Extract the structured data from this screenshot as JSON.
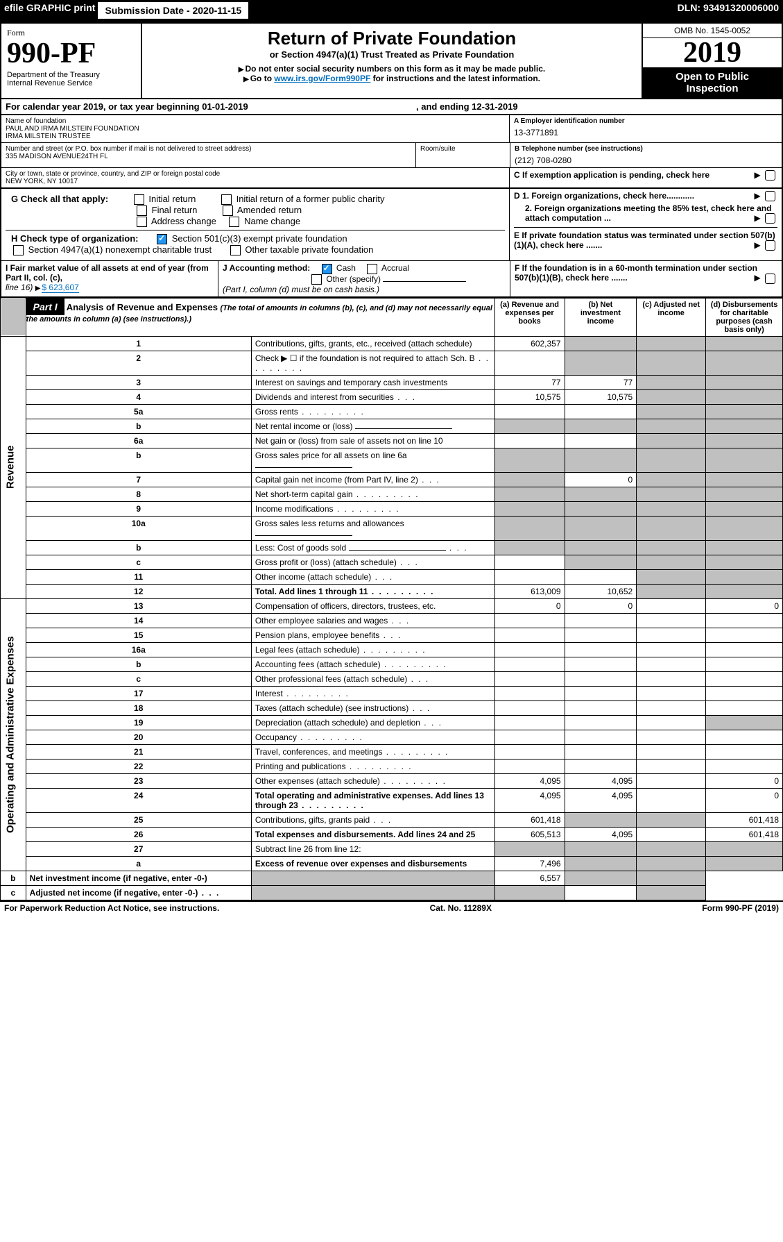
{
  "topbar": {
    "efile": "efile GRAPHIC print",
    "sublabel": "Submission Date - 2020-11-15",
    "dln": "DLN: 93491320006000"
  },
  "head": {
    "form_label": "Form",
    "form_no_big": "990-PF",
    "dept": "Department of the Treasury",
    "irs": "Internal Revenue Service",
    "title": "Return of Private Foundation",
    "subtitle": "or Section 4947(a)(1) Trust Treated as Private Foundation",
    "instr1": "Do not enter social security numbers on this form as it may be made public.",
    "instr2_pre": "Go to ",
    "instr2_link": "www.irs.gov/Form990PF",
    "instr2_post": " for instructions and the latest information.",
    "omb": "OMB No. 1545-0052",
    "year": "2019",
    "open1": "Open to Public",
    "open2": "Inspection"
  },
  "cal": {
    "line": "For calendar year 2019, or tax year beginning 01-01-2019",
    "end": ", and ending 12-31-2019"
  },
  "info": {
    "name_label": "Name of foundation",
    "name1": "PAUL AND IRMA MILSTEIN FOUNDATION",
    "name2": "IRMA MILSTEIN TRUSTEE",
    "addr_label": "Number and street (or P.O. box number if mail is not delivered to street address)",
    "addr": "335 MADISON AVENUE24TH FL",
    "room_label": "Room/suite",
    "city_label": "City or town, state or province, country, and ZIP or foreign postal code",
    "city": "NEW YORK, NY  10017",
    "ein_label": "A Employer identification number",
    "ein": "13-3771891",
    "tel_label": "B Telephone number (see instructions)",
    "tel": "(212) 708-0280",
    "c": "C If exemption application is pending, check here",
    "d1": "D 1. Foreign organizations, check here............",
    "d2": "2. Foreign organizations meeting the 85% test, check here and attach computation ...",
    "e": "E  If private foundation status was terminated under section 507(b)(1)(A), check here .......",
    "f": "F  If the foundation is in a 60-month termination under section 507(b)(1)(B), check here ......."
  },
  "g": {
    "label": "G Check all that apply:",
    "opts": [
      "Initial return",
      "Final return",
      "Address change",
      "Initial return of a former public charity",
      "Amended return",
      "Name change"
    ]
  },
  "h": {
    "label": "H Check type of organization:",
    "o1": "Section 501(c)(3) exempt private foundation",
    "o2": "Section 4947(a)(1) nonexempt charitable trust",
    "o3": "Other taxable private foundation"
  },
  "i": {
    "label": "I Fair market value of all assets at end of year (from Part II, col. (c),",
    "line16": "line 16) ",
    "amt": "$  623,607"
  },
  "j": {
    "label": "J Accounting method:",
    "cash": "Cash",
    "accrual": "Accrual",
    "other": "Other (specify)",
    "note": "(Part I, column (d) must be on cash basis.)"
  },
  "part1": {
    "hdr": "Part I",
    "title": "Analysis of Revenue and Expenses ",
    "desc": "(The total of amounts in columns (b), (c), and (d) may not necessarily equal the amounts in column (a) (see instructions).)",
    "cols": {
      "a": "(a)   Revenue and expenses per books",
      "b": "(b)  Net investment income",
      "c": "(c)  Adjusted net income",
      "d": "(d)  Disbursements for charitable purposes (cash basis only)"
    },
    "sections": {
      "rev": "Revenue",
      "exp": "Operating and Administrative Expenses"
    },
    "rows": [
      {
        "n": "1",
        "d": "Contributions, gifts, grants, etc., received (attach schedule)",
        "a": "602,357"
      },
      {
        "n": "2",
        "d": "Check ▶ ☐ if the foundation is not required to attach Sch. B",
        "dots": true,
        "a": ""
      },
      {
        "n": "3",
        "d": "Interest on savings and temporary cash investments",
        "a": "77",
        "b": "77"
      },
      {
        "n": "4",
        "d": "Dividends and interest from securities",
        "sdots": true,
        "a": "10,575",
        "b": "10,575"
      },
      {
        "n": "5a",
        "d": "Gross rents",
        "dots": true
      },
      {
        "n": "b",
        "d": "Net rental income or (loss)",
        "inline": true
      },
      {
        "n": "6a",
        "d": "Net gain or (loss) from sale of assets not on line 10"
      },
      {
        "n": "b",
        "d": "Gross sales price for all assets on line 6a",
        "inline": true
      },
      {
        "n": "7",
        "d": "Capital gain net income (from Part IV, line 2)",
        "sdots": true,
        "b": "0",
        "graycols": [
          "a"
        ]
      },
      {
        "n": "8",
        "d": "Net short-term capital gain",
        "dots": true,
        "graycols": [
          "a",
          "b"
        ]
      },
      {
        "n": "9",
        "d": "Income modifications",
        "dots": true,
        "graycols": [
          "a",
          "b"
        ]
      },
      {
        "n": "10a",
        "d": "Gross sales less returns and allowances",
        "inline": true
      },
      {
        "n": "b",
        "d": "Less: Cost of goods sold",
        "sdots": true,
        "inline": true
      },
      {
        "n": "c",
        "d": "Gross profit or (loss) (attach schedule)",
        "sdots": true,
        "graycols": [
          "b"
        ]
      },
      {
        "n": "11",
        "d": "Other income (attach schedule)",
        "sdots": true
      },
      {
        "n": "12",
        "d": "Total. Add lines 1 through 11",
        "dots": true,
        "bold": true,
        "a": "613,009",
        "b": "10,652",
        "graycols": [
          "d"
        ]
      },
      {
        "n": "13",
        "d": "Compensation of officers, directors, trustees, etc.",
        "a": "0",
        "b": "0",
        "dv": "0"
      },
      {
        "n": "14",
        "d": "Other employee salaries and wages",
        "sdots": true
      },
      {
        "n": "15",
        "d": "Pension plans, employee benefits",
        "sdots": true
      },
      {
        "n": "16a",
        "d": "Legal fees (attach schedule)",
        "dots": true
      },
      {
        "n": "b",
        "d": "Accounting fees (attach schedule)",
        "dots": true
      },
      {
        "n": "c",
        "d": "Other professional fees (attach schedule)",
        "sdots": true
      },
      {
        "n": "17",
        "d": "Interest",
        "dots": true
      },
      {
        "n": "18",
        "d": "Taxes (attach schedule) (see instructions)",
        "sdots": true
      },
      {
        "n": "19",
        "d": "Depreciation (attach schedule) and depletion",
        "sdots": true,
        "graycols": [
          "d"
        ]
      },
      {
        "n": "20",
        "d": "Occupancy",
        "dots": true
      },
      {
        "n": "21",
        "d": "Travel, conferences, and meetings",
        "dots": true
      },
      {
        "n": "22",
        "d": "Printing and publications",
        "dots": true
      },
      {
        "n": "23",
        "d": "Other expenses (attach schedule)",
        "dots": true,
        "a": "4,095",
        "b": "4,095",
        "dv": "0"
      },
      {
        "n": "24",
        "d": "Total operating and administrative expenses. Add lines 13 through 23",
        "dots": true,
        "bold": true,
        "a": "4,095",
        "b": "4,095",
        "dv": "0"
      },
      {
        "n": "25",
        "d": "Contributions, gifts, grants paid",
        "sdots": true,
        "a": "601,418",
        "dv": "601,418",
        "graycols": [
          "b",
          "c"
        ]
      },
      {
        "n": "26",
        "d": "Total expenses and disbursements. Add lines 24 and 25",
        "bold": true,
        "a": "605,513",
        "b": "4,095",
        "dv": "601,418"
      },
      {
        "n": "27",
        "d": "Subtract line 26 from line 12:",
        "graycols": [
          "a",
          "b",
          "c",
          "d"
        ]
      },
      {
        "n": "a",
        "d": "Excess of revenue over expenses and disbursements",
        "bold": true,
        "a": "7,496",
        "graycols": [
          "b",
          "c",
          "d"
        ]
      },
      {
        "n": "b",
        "d": "Net investment income (if negative, enter -0-)",
        "bold": true,
        "b": "6,557",
        "graycols": [
          "a",
          "c",
          "d"
        ]
      },
      {
        "n": "c",
        "d": "Adjusted net income (if negative, enter -0-)",
        "bold": true,
        "sdots": true,
        "graycols": [
          "a",
          "b",
          "d"
        ]
      }
    ]
  },
  "footer": {
    "left": "For Paperwork Reduction Act Notice, see instructions.",
    "mid": "Cat. No. 11289X",
    "right": "Form 990-PF (2019)"
  }
}
